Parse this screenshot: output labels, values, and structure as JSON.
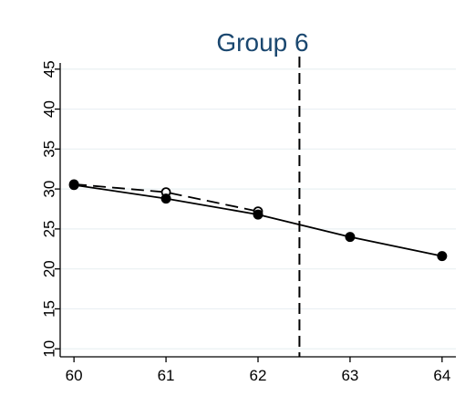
{
  "chart_data": {
    "type": "line",
    "title": "Group 6",
    "xlabel": "",
    "ylabel": "",
    "x_ticks": [
      "60",
      "61",
      "62",
      "63",
      "64"
    ],
    "y_ticks": [
      "10",
      "15",
      "20",
      "25",
      "30",
      "35",
      "40",
      "45"
    ],
    "xlim": [
      59.85,
      64.15
    ],
    "ylim": [
      9,
      46
    ],
    "grid": true,
    "legend": "none",
    "vline": {
      "x": 62.45,
      "style": "dashed"
    },
    "series": [
      {
        "name": "",
        "style": "solid",
        "marker": "filled-circle",
        "x": [
          60,
          61,
          62,
          63,
          64
        ],
        "y": [
          30.5,
          28.8,
          26.8,
          24.0,
          21.6
        ]
      },
      {
        "name": "",
        "style": "dashed",
        "marker": "hollow-circle",
        "x": [
          60,
          61,
          62
        ],
        "y": [
          30.6,
          29.6,
          27.2
        ]
      }
    ],
    "colors": {
      "plot_bg": "#ffffff",
      "grid": "#eaf0f3",
      "title": "#1a476f",
      "line": "#000000"
    }
  }
}
